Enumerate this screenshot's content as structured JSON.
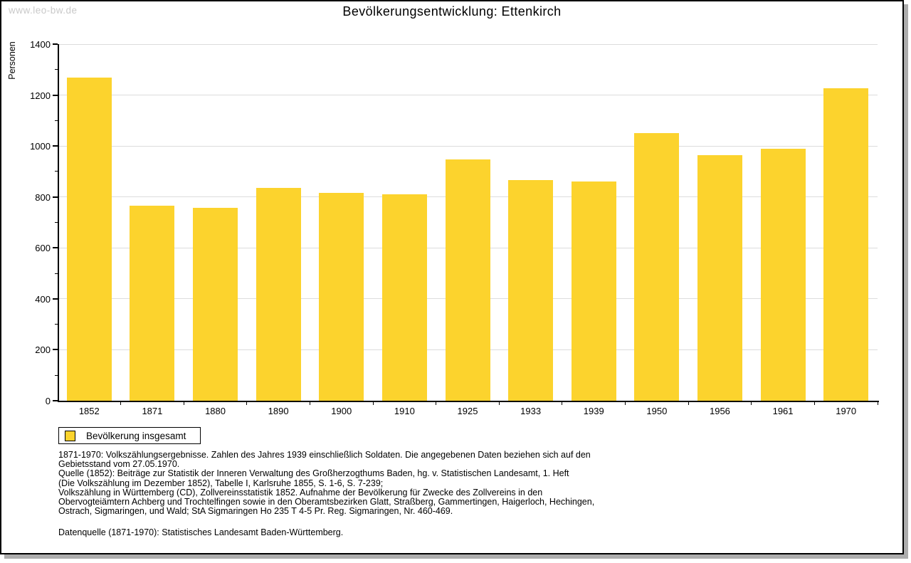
{
  "watermark": "www.leo-bw.de",
  "title": "Bevölkerungsentwicklung: Ettenkirch",
  "chart_data": {
    "type": "bar",
    "title": "Bevölkerungsentwicklung: Ettenkirch",
    "categories": [
      "1852",
      "1871",
      "1880",
      "1890",
      "1900",
      "1910",
      "1925",
      "1933",
      "1939",
      "1950",
      "1956",
      "1961",
      "1970"
    ],
    "values": [
      1270,
      766,
      757,
      836,
      815,
      810,
      947,
      867,
      861,
      1051,
      964,
      990,
      1228
    ],
    "xlabel": "",
    "ylabel": "Personen",
    "ylim": [
      0,
      1400
    ],
    "yticks": [
      0,
      200,
      400,
      600,
      800,
      1000,
      1200,
      1400
    ],
    "ytick_major_step": 200,
    "ytick_minor_step": 100,
    "grid": "horizontal major gridlines",
    "legend_position": "below plot, bottom-left",
    "legend_label": "Bevölkerung insgesamt",
    "bar_color": "#fcd32d"
  },
  "legend": {
    "label": "Bevölkerung insgesamt"
  },
  "footnotes": {
    "lines": [
      "1871-1970: Volkszählungsergebnisse. Zahlen des Jahres 1939 einschließlich Soldaten. Die angegebenen Daten beziehen sich auf den",
      "Gebietsstand vom 27.05.1970.",
      "Quelle (1852): Beiträge zur Statistik der Inneren Verwaltung des Großherzogthums Baden, hg. v. Statistischen Landesamt, 1. Heft",
      "(Die Volkszählung im Dezember 1852), Tabelle I, Karlsruhe 1855, S. 1-6, S. 7-239;",
      "Volkszählung in Württemberg (CD), Zollvereinsstatistik 1852. Aufnahme der Bevölkerung für Zwecke des Zollvereins in den",
      "Obervogteiämtern Achberg und Trochtelfingen sowie in den Oberamtsbezirken Glatt, Straßberg, Gammertingen, Haigerloch, Hechingen,",
      "Ostrach, Sigmaringen, und Wald; StA Sigmaringen Ho 235 T 4-5 Pr. Reg. Sigmaringen, Nr. 460-469."
    ],
    "datasource": "Datenquelle (1871-1970): Statistisches Landesamt Baden-Württemberg."
  },
  "colors": {
    "bar": "#fcd32d",
    "gridline": "#dcdcdc",
    "axis": "#000000",
    "watermark_text": "#c9c9c9",
    "frame_shadow": "#adadad"
  }
}
